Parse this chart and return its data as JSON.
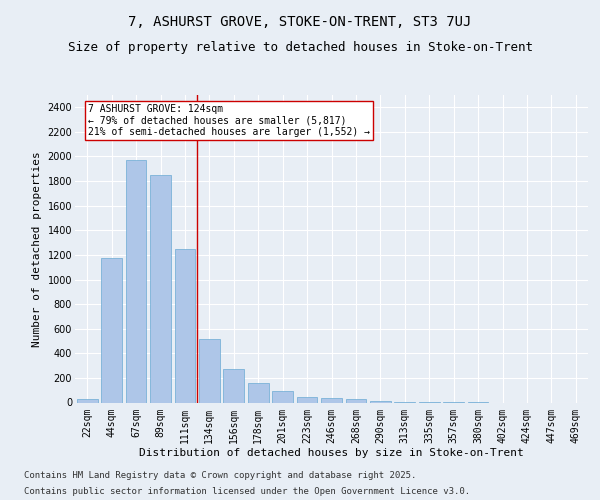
{
  "title1": "7, ASHURST GROVE, STOKE-ON-TRENT, ST3 7UJ",
  "title2": "Size of property relative to detached houses in Stoke-on-Trent",
  "xlabel": "Distribution of detached houses by size in Stoke-on-Trent",
  "ylabel": "Number of detached properties",
  "categories": [
    "22sqm",
    "44sqm",
    "67sqm",
    "89sqm",
    "111sqm",
    "134sqm",
    "156sqm",
    "178sqm",
    "201sqm",
    "223sqm",
    "246sqm",
    "268sqm",
    "290sqm",
    "313sqm",
    "335sqm",
    "357sqm",
    "380sqm",
    "402sqm",
    "424sqm",
    "447sqm",
    "469sqm"
  ],
  "values": [
    25,
    1175,
    1975,
    1850,
    1245,
    515,
    270,
    155,
    90,
    45,
    35,
    30,
    10,
    5,
    3,
    2,
    1,
    0,
    0,
    0,
    0
  ],
  "bar_color": "#aec6e8",
  "bar_edge_color": "#6aaad4",
  "vline_color": "#cc0000",
  "annotation_text": "7 ASHURST GROVE: 124sqm\n← 79% of detached houses are smaller (5,817)\n21% of semi-detached houses are larger (1,552) →",
  "annotation_box_color": "#ffffff",
  "annotation_box_edge_color": "#cc0000",
  "ylim": [
    0,
    2500
  ],
  "yticks": [
    0,
    200,
    400,
    600,
    800,
    1000,
    1200,
    1400,
    1600,
    1800,
    2000,
    2200,
    2400
  ],
  "background_color": "#e8eef5",
  "footer_text1": "Contains HM Land Registry data © Crown copyright and database right 2025.",
  "footer_text2": "Contains public sector information licensed under the Open Government Licence v3.0.",
  "title1_fontsize": 10,
  "title2_fontsize": 9,
  "xlabel_fontsize": 8,
  "ylabel_fontsize": 8,
  "tick_fontsize": 7,
  "annotation_fontsize": 7,
  "footer_fontsize": 6.5
}
